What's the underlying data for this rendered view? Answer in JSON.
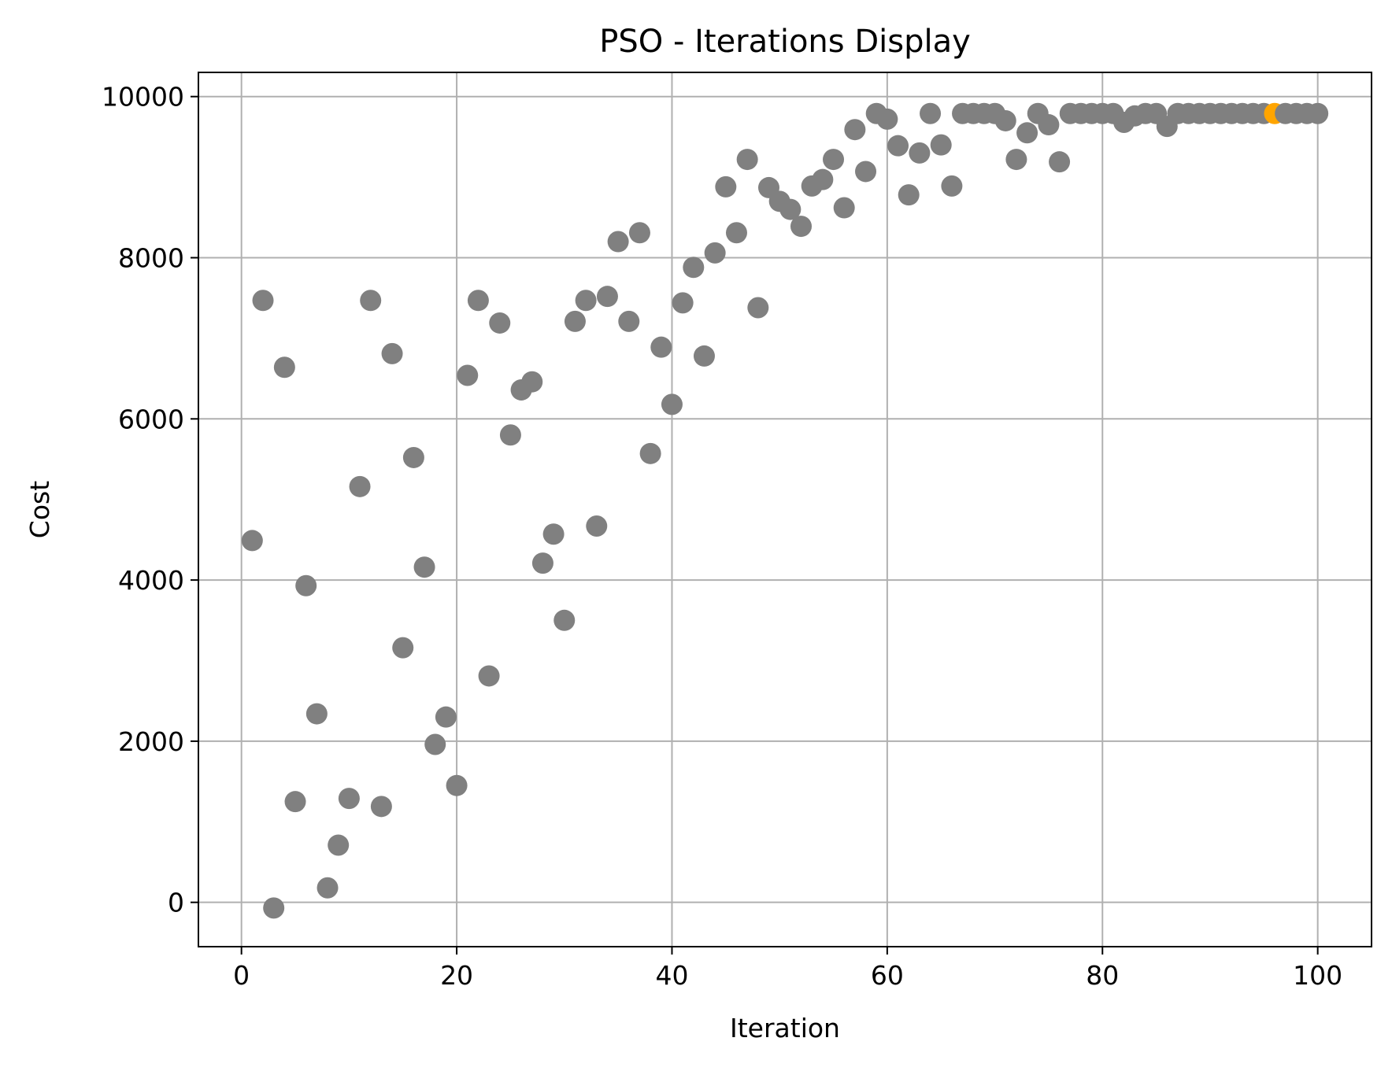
{
  "chart_data": {
    "type": "scatter",
    "title": "PSO - Iterations Display",
    "xlabel": "Iteration",
    "ylabel": "Cost",
    "xlim": [
      -4,
      105
    ],
    "ylim": [
      -550,
      10300
    ],
    "xticks": [
      0,
      20,
      40,
      60,
      80,
      100
    ],
    "yticks": [
      0,
      2000,
      4000,
      6000,
      8000,
      10000
    ],
    "xtick_labels": [
      "0",
      "20",
      "40",
      "60",
      "80",
      "100"
    ],
    "ytick_labels": [
      "0",
      "2000",
      "4000",
      "6000",
      "8000",
      "10000"
    ],
    "grid": true,
    "legend": "none",
    "colors": {
      "point": "#808080",
      "highlight": "#ffa500",
      "grid": "#b0b0b0",
      "axes": "#000000",
      "background": "#ffffff"
    },
    "highlight_x": 96,
    "series": [
      {
        "x": [
          1,
          2,
          3,
          4,
          5,
          6,
          7,
          8,
          9,
          10,
          11,
          12,
          13,
          14,
          15,
          16,
          17,
          18,
          19,
          20,
          21,
          22,
          23,
          24,
          25,
          26,
          27,
          28,
          29,
          30,
          31,
          32,
          33,
          34,
          35,
          36,
          37,
          38,
          39,
          40,
          41,
          42,
          43,
          44,
          45,
          46,
          47,
          48,
          49,
          50,
          51,
          52,
          53,
          54,
          55,
          56,
          57,
          58,
          59,
          60,
          61,
          62,
          63,
          64,
          65,
          66,
          67,
          68,
          69,
          70,
          71,
          72,
          73,
          74,
          75,
          76,
          77,
          78,
          79,
          80,
          81,
          82,
          83,
          84,
          85,
          86,
          87,
          88,
          89,
          90,
          91,
          92,
          93,
          94,
          95,
          96,
          97,
          98,
          99,
          100
        ],
        "y": [
          4490,
          7470,
          -70,
          6640,
          1250,
          3930,
          2340,
          180,
          710,
          1290,
          5160,
          7470,
          1190,
          6810,
          3160,
          5520,
          4160,
          1960,
          2300,
          1450,
          6540,
          7470,
          2810,
          7190,
          5800,
          6360,
          6460,
          4210,
          4570,
          3500,
          7210,
          7470,
          4670,
          7520,
          8200,
          7210,
          8310,
          5570,
          6890,
          6180,
          7440,
          7880,
          6780,
          8060,
          8880,
          8310,
          9220,
          7380,
          8870,
          8700,
          8600,
          8390,
          8890,
          8970,
          9220,
          8620,
          9590,
          9070,
          9790,
          9720,
          9390,
          8780,
          9300,
          9790,
          9400,
          8890,
          9790,
          9790,
          9790,
          9790,
          9700,
          9220,
          9550,
          9790,
          9650,
          9190,
          9790,
          9790,
          9790,
          9790,
          9790,
          9680,
          9760,
          9790,
          9790,
          9630,
          9790,
          9790,
          9790,
          9790,
          9790,
          9790,
          9790,
          9790,
          9790,
          9790,
          9790,
          9790,
          9790,
          9790
        ]
      }
    ]
  }
}
